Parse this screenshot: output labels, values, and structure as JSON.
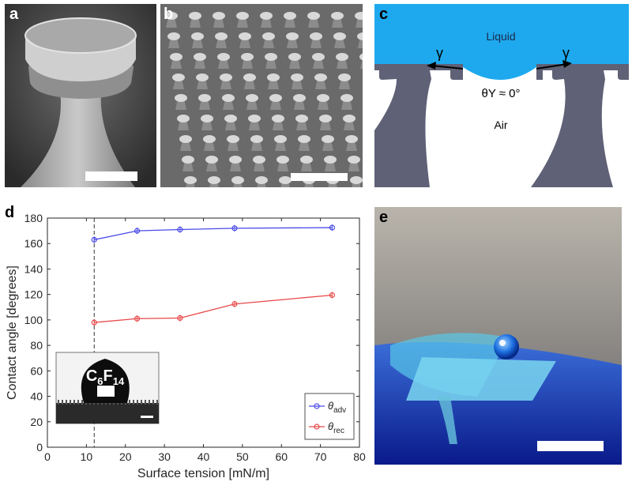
{
  "figure": {
    "panels": {
      "a": {
        "label": "a"
      },
      "b": {
        "label": "b"
      },
      "c": {
        "label": "c",
        "liquid_label": "Liquid",
        "air_label": "Air",
        "gamma_left": "γ",
        "gamma_right": "γ",
        "angle_label": "θY ≈ 0°",
        "liquid_color": "#1ea9ee",
        "solid_color": "#5f6176"
      },
      "d": {
        "label": "d"
      },
      "e": {
        "label": "e"
      }
    }
  },
  "chart_data": {
    "type": "line",
    "xlabel": "Surface tension [mN/m]",
    "ylabel": "Contact angle [degrees]",
    "xlim": [
      0,
      80
    ],
    "ylim": [
      0,
      180
    ],
    "xticks": [
      0,
      10,
      20,
      30,
      40,
      50,
      60,
      70,
      80
    ],
    "yticks": [
      0,
      20,
      40,
      60,
      80,
      100,
      120,
      140,
      160,
      180
    ],
    "x": [
      12,
      23,
      34,
      48,
      73
    ],
    "series": [
      {
        "name": "θadv",
        "color": "#4a4ae8",
        "values": [
          163,
          170,
          171,
          172,
          172.5
        ]
      },
      {
        "name": "θrec",
        "color": "#e84a4a",
        "values": [
          98,
          101,
          101.5,
          112.5,
          119.5
        ]
      }
    ],
    "vline_x": 12,
    "legend_position": "bottom-right",
    "inset_label": "C6F14",
    "grid": false
  }
}
